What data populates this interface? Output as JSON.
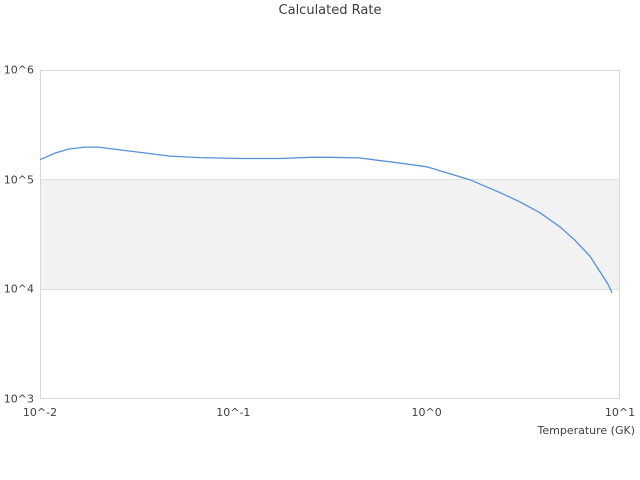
{
  "colors": {
    "line": "#5591d7",
    "band_fill": "#f2f2f2",
    "grid": "#dedede",
    "border": "#d9d9d9",
    "text": "#3f3f3f",
    "background": "#ffffff"
  },
  "chart_data": {
    "type": "line",
    "title": "Calculated Rate",
    "xlabel": "Temperature (GK)",
    "ylabel": "",
    "x_scale": "log",
    "y_scale": "log",
    "xlim": [
      0.01,
      10
    ],
    "ylim": [
      1000,
      1000000
    ],
    "grid": "horizontal gridlines at 10^4 and 10^5 only (edges of shaded band); no vertical gridlines",
    "legend": "none",
    "x_ticks": [
      {
        "value": 0.01,
        "label": "10^-2"
      },
      {
        "value": 0.1,
        "label": "10^-1"
      },
      {
        "value": 1,
        "label": "10^0"
      },
      {
        "value": 10,
        "label": "10^1"
      }
    ],
    "y_ticks": [
      {
        "value": 1000,
        "label": "10^3"
      },
      {
        "value": 10000,
        "label": "10^4"
      },
      {
        "value": 100000,
        "label": "10^5"
      },
      {
        "value": 1000000,
        "label": "10^6"
      }
    ],
    "shaded_band": {
      "y_min": 10000,
      "y_max": 100000
    },
    "series": [
      {
        "name": "Calculated Rate",
        "x": [
          0.01,
          0.012,
          0.014,
          0.017,
          0.02,
          0.026,
          0.035,
          0.047,
          0.067,
          0.108,
          0.174,
          0.251,
          0.316,
          0.447,
          0.724,
          1.0,
          1.32,
          1.67,
          2.4,
          3.02,
          3.85,
          4.9,
          5.85,
          7.0,
          7.9,
          8.65,
          9.1
        ],
        "y": [
          152000,
          175000,
          190000,
          198000,
          198000,
          187000,
          175000,
          164000,
          159000,
          156000,
          156000,
          160000,
          160000,
          158000,
          142000,
          131000,
          113000,
          100000,
          76000,
          63000,
          50000,
          37000,
          28000,
          20000,
          14400,
          11200,
          9300
        ]
      }
    ]
  },
  "layout_note": "single line chart, no legend, shaded horizontal band between 10^4 and 10^5"
}
